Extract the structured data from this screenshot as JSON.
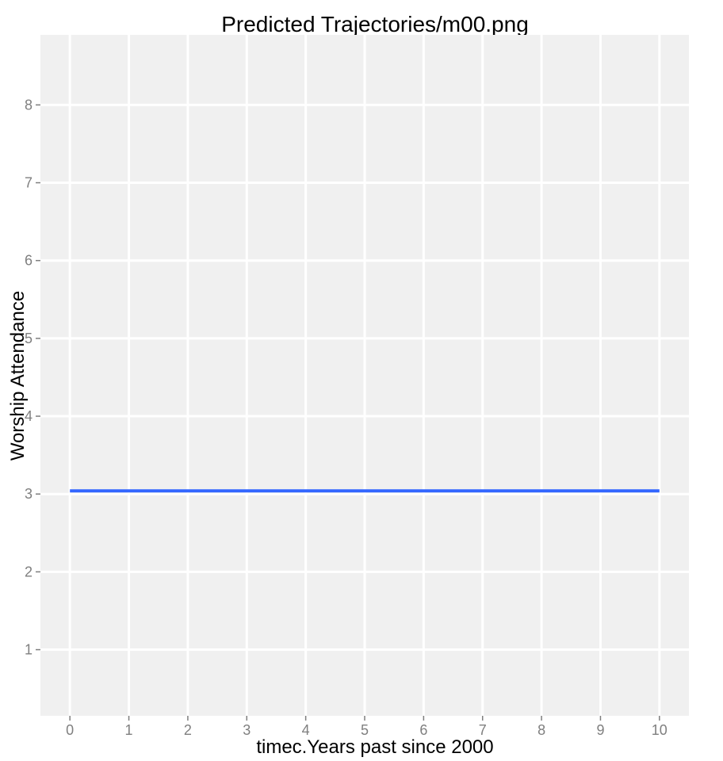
{
  "chart_data": {
    "type": "line",
    "title": "Predicted Trajectories/m00.png",
    "xlabel": "timec.Years past since 2000",
    "ylabel": "Worship Attendance",
    "xlim": [
      -0.5,
      10.5
    ],
    "ylim": [
      0.15,
      8.9
    ],
    "x_ticks": [
      0,
      1,
      2,
      3,
      4,
      5,
      6,
      7,
      8,
      9,
      10
    ],
    "x_tick_labels": [
      "0",
      "1",
      "2",
      "3",
      "4",
      "5",
      "6",
      "7",
      "8",
      "9",
      "10"
    ],
    "y_ticks": [
      1,
      2,
      3,
      4,
      5,
      6,
      7,
      8
    ],
    "y_tick_labels": [
      "1",
      "2",
      "3",
      "4",
      "5",
      "6",
      "7",
      "8"
    ],
    "grid": true,
    "legend": "none",
    "series": [
      {
        "x": [
          0,
          10
        ],
        "values": [
          3.04,
          3.04
        ],
        "color": "#3366ff"
      }
    ],
    "colors": {
      "panel_background": "#f0f0f0",
      "grid_major": "#ffffff",
      "tick_text": "#7f7f7f",
      "tick_mark": "#7f7f7f",
      "title_text": "#000000"
    }
  }
}
